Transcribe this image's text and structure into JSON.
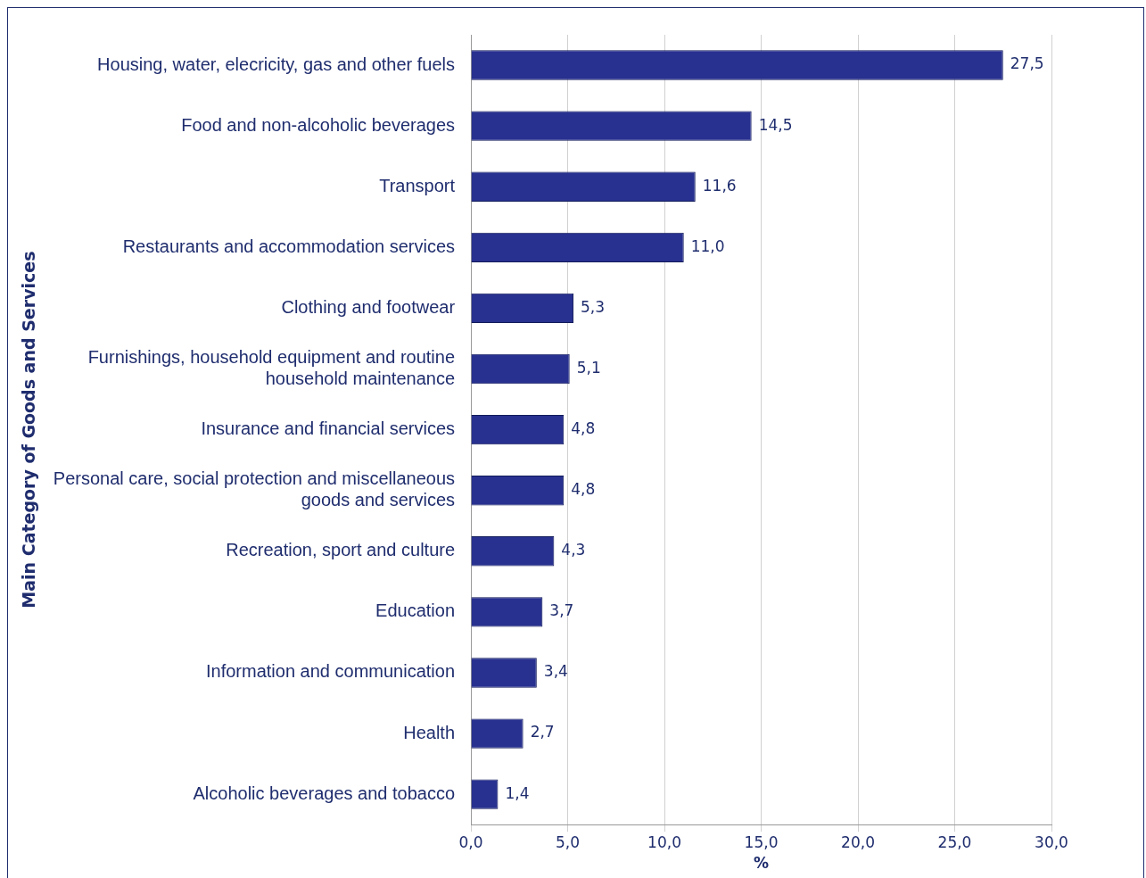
{
  "chart_data": {
    "type": "bar",
    "orientation": "horizontal",
    "categories": [
      "Housing, water, elecricity, gas and other fuels",
      "Food and non-alcoholic beverages",
      "Transport",
      "Restaurants and accommodation services",
      "Clothing and footwear",
      "Furnishings, household equipment and routine household maintenance",
      "Insurance and financial services",
      "Personal care, social protection and miscellaneous goods and services",
      "Recreation, sport and culture",
      "Education",
      "Information and communication",
      "Health",
      "Alcoholic beverages and tobacco"
    ],
    "values": [
      27.5,
      14.5,
      11.6,
      11.0,
      5.3,
      5.1,
      4.8,
      4.8,
      4.3,
      3.7,
      3.4,
      2.7,
      1.4
    ],
    "value_labels": [
      "27,5",
      "14,5",
      "11,6",
      "11,0",
      "5,3",
      "5,1",
      "4,8",
      "4,8",
      "4,3",
      "3,7",
      "3,4",
      "2,7",
      "1,4"
    ],
    "color": "#28318f",
    "xlim": [
      0,
      30
    ],
    "xticks": [
      {
        "value": 0,
        "label": "0,0"
      },
      {
        "value": 5,
        "label": "5,0"
      },
      {
        "value": 10,
        "label": "10,0"
      },
      {
        "value": 15,
        "label": "15,0"
      },
      {
        "value": 20,
        "label": "20,0"
      },
      {
        "value": 25,
        "label": "25,0"
      },
      {
        "value": 30,
        "label": "30,0"
      }
    ],
    "xlabel": "%",
    "ylabel": "Main Category of Goods and Services",
    "grid": "x"
  }
}
